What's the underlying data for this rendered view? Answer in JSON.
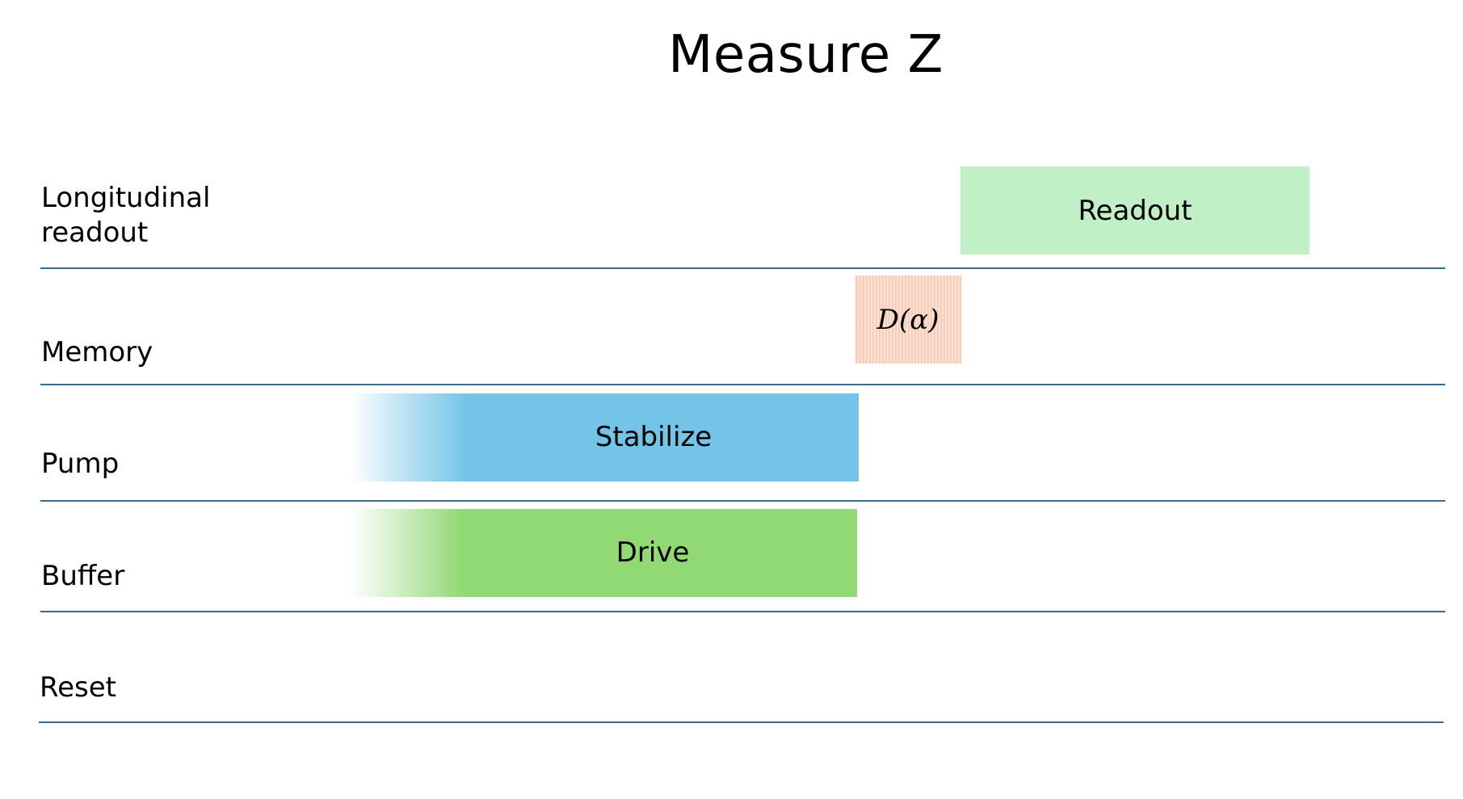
{
  "title": "Measure Z",
  "lanes": [
    {
      "label_line1": "Longitudinal",
      "label_line2": "readout"
    },
    {
      "label": "Memory"
    },
    {
      "label": "Pump"
    },
    {
      "label": "Buffer"
    },
    {
      "label": "Reset"
    }
  ],
  "blocks": {
    "readout": {
      "label": "Readout",
      "color": "#c2f0c6"
    },
    "displacement": {
      "label": "D(α)",
      "color": "#f8cdb6"
    },
    "stabilize": {
      "label": "Stabilize",
      "color": "#74c4e8"
    },
    "drive": {
      "label": "Drive",
      "color": "#91d975"
    }
  },
  "colors": {
    "lane_line": "#3b6a8e"
  }
}
